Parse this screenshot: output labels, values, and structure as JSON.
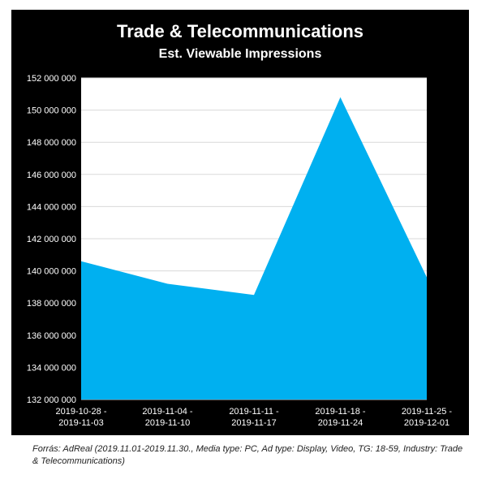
{
  "chart_data": {
    "type": "area",
    "title": "Trade & Telecommunications",
    "subtitle": "Est. Viewable Impressions",
    "xlabel": "",
    "ylabel": "",
    "categories": [
      [
        "2019-10-28 -",
        "2019-11-03"
      ],
      [
        "2019-11-04 -",
        "2019-11-10"
      ],
      [
        "2019-11-11 -",
        "2019-11-17"
      ],
      [
        "2019-11-18 -",
        "2019-11-24"
      ],
      [
        "2019-11-25 -",
        "2019-12-01"
      ]
    ],
    "series": [
      {
        "values": [
          140600000,
          139200000,
          138500000,
          150800000,
          139600000
        ]
      }
    ],
    "ylim": [
      132000000,
      152000000
    ],
    "yticks": [
      {
        "value": 132000000,
        "label": "132 000 000"
      },
      {
        "value": 134000000,
        "label": "134 000 000"
      },
      {
        "value": 136000000,
        "label": "136 000 000"
      },
      {
        "value": 138000000,
        "label": "138 000 000"
      },
      {
        "value": 140000000,
        "label": "140 000 000"
      },
      {
        "value": 142000000,
        "label": "142 000 000"
      },
      {
        "value": 144000000,
        "label": "144 000 000"
      },
      {
        "value": 146000000,
        "label": "146 000 000"
      },
      {
        "value": 148000000,
        "label": "148 000 000"
      },
      {
        "value": 150000000,
        "label": "150 000 000"
      },
      {
        "value": 152000000,
        "label": "152 000 000"
      }
    ],
    "grid": true,
    "legend": "none",
    "colors": {
      "fill": "#00b0f0",
      "background": "#000000",
      "plot_background": "#ffffff",
      "gridline": "#d9d9d9",
      "text": "#ffffff"
    }
  },
  "source_note": "Forrás: AdReal (2019.11.01-2019.11.30., Media type: PC, Ad type: Display, Video, TG: 18-59, Industry: Trade & Telecommunications)"
}
